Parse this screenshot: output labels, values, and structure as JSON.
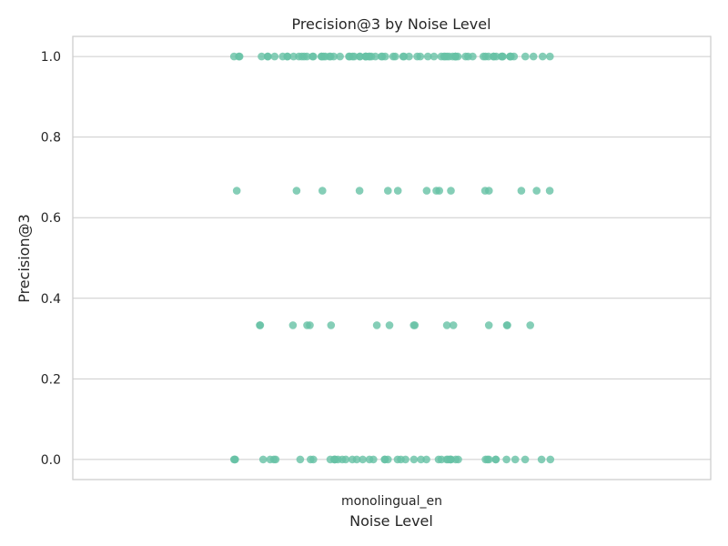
{
  "chart_data": {
    "type": "scatter",
    "title": "Precision@3 by Noise Level",
    "xlabel": "Noise Level",
    "ylabel": "Precision@3",
    "categories": [
      "monolingual_en"
    ],
    "ylim": [
      -0.05,
      1.05
    ],
    "yticks": [
      "0.0",
      "0.2",
      "0.4",
      "0.6",
      "0.8",
      "1.0"
    ],
    "grid": true,
    "point_color": "#66c2a5",
    "series": [
      {
        "category": "monolingual_en",
        "values": [
          1.0,
          1.0,
          1.0,
          1.0,
          1.0,
          1.0,
          1.0,
          1.0,
          1.0,
          1.0,
          1.0,
          1.0,
          1.0,
          1.0,
          1.0,
          1.0,
          1.0,
          1.0,
          1.0,
          1.0,
          1.0,
          1.0,
          1.0,
          1.0,
          1.0,
          1.0,
          1.0,
          1.0,
          1.0,
          1.0,
          1.0,
          1.0,
          1.0,
          1.0,
          1.0,
          1.0,
          1.0,
          1.0,
          1.0,
          1.0,
          1.0,
          1.0,
          1.0,
          1.0,
          1.0,
          1.0,
          1.0,
          1.0,
          1.0,
          1.0,
          1.0,
          1.0,
          1.0,
          1.0,
          1.0,
          1.0,
          1.0,
          1.0,
          1.0,
          1.0,
          1.0,
          1.0,
          1.0,
          1.0,
          1.0,
          1.0,
          1.0,
          1.0,
          1.0,
          1.0,
          1.0,
          1.0,
          1.0,
          1.0,
          1.0,
          1.0,
          1.0,
          1.0,
          1.0,
          1.0,
          0.667,
          0.667,
          0.667,
          0.667,
          0.667,
          0.667,
          0.667,
          0.667,
          0.667,
          0.667,
          0.667,
          0.667,
          0.667,
          0.667,
          0.667,
          0.333,
          0.333,
          0.333,
          0.333,
          0.333,
          0.333,
          0.333,
          0.333,
          0.333,
          0.333,
          0.333,
          0.333,
          0.333,
          0.333,
          0.333,
          0.333,
          0.0,
          0.0,
          0.0,
          0.0,
          0.0,
          0.0,
          0.0,
          0.0,
          0.0,
          0.0,
          0.0,
          0.0,
          0.0,
          0.0,
          0.0,
          0.0,
          0.0,
          0.0,
          0.0,
          0.0,
          0.0,
          0.0,
          0.0,
          0.0,
          0.0,
          0.0,
          0.0,
          0.0,
          0.0,
          0.0,
          0.0,
          0.0,
          0.0,
          0.0,
          0.0,
          0.0,
          0.0,
          0.0,
          0.0,
          0.0,
          0.0,
          0.0,
          0.0,
          0.0,
          0.0,
          0.0,
          0.0,
          0.0,
          0.0,
          0.0
        ]
      }
    ]
  }
}
